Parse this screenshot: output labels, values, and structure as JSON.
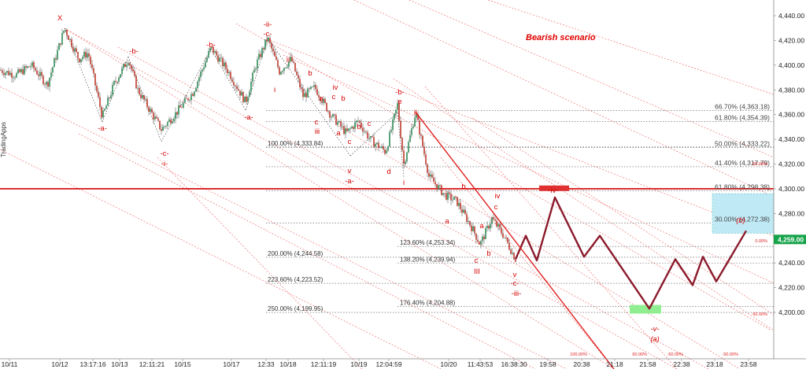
{
  "chart_data": {
    "type": "line",
    "title": "Bearish scenario",
    "watermark": "TradingApps",
    "y_axis": {
      "range": [
        4186,
        4450
      ],
      "ticks": [
        "4,440.00",
        "4,420.00",
        "4,400.00",
        "4,380.00",
        "4,360.00",
        "4,340.00",
        "4,320.00",
        "4,300.00",
        "4,280.00",
        "4,260.00",
        "4,240.00",
        "4,220.00",
        "4,200.00"
      ]
    },
    "x_axis": {
      "labels": [
        "10/11",
        "10/12",
        "13:17:16",
        "10/13",
        "12:11:21",
        "10/15",
        "10/17",
        "12:33",
        "10/18",
        "12:11:19",
        "10/19",
        "12:04:59",
        "10/20",
        "11:43:53",
        "16:38:30",
        "19:58",
        "20:38",
        "21:18",
        "21:58",
        "22:38",
        "23:18",
        "23:58"
      ]
    },
    "current_price": {
      "value": 4259.0,
      "label": "4,259.00",
      "color": "#16a34a"
    },
    "key_level": {
      "value": 4300.0,
      "color": "#d40000"
    },
    "fib_right": [
      {
        "label": "66.70% (4,363.18)",
        "value": 4363.18
      },
      {
        "label": "61.80% (4,354.39)",
        "value": 4354.39
      },
      {
        "label": "50.00% (4,333.22)",
        "value": 4333.22
      },
      {
        "label": "41.40% (4,317.79)",
        "value": 4317.79
      },
      {
        "label": "30.00% (4,272.38)",
        "value": 4272.38
      }
    ],
    "fib_right_overlap": {
      "label": "61.80% (4,298.38)",
      "value": 4298.38
    },
    "fib_left": [
      {
        "label": "100.00% (4,333.84)",
        "value": 4333.84
      },
      {
        "label": "200.00% (4,244.58)",
        "value": 4244.58
      },
      {
        "label": "223.60% (4,223.52)",
        "value": 4223.52
      },
      {
        "label": "250.00% (4,199.95)",
        "value": 4199.95
      }
    ],
    "fib_mid": [
      {
        "label": "123.60% (4,253.34)",
        "value": 4253.34
      },
      {
        "label": "138.20% (4,239.94)",
        "value": 4239.94
      },
      {
        "label": "176.40% (4,204.88)",
        "value": 4204.88
      }
    ],
    "small_pct_labels": [
      "-50.00%",
      "0.00%",
      "60.00%",
      "100.00%",
      "60.00%",
      "-50.00%",
      "-50.00%"
    ],
    "wave_labels": {
      "X": "X",
      "a1": "-a-",
      "b1": "-b-",
      "c1": "-c-",
      "i1": "-i-",
      "a2": "-a-",
      "b2": "-b-",
      "ii_top": "-ii-",
      "c_top": "-c-",
      "i_small": "i",
      "ii_small": "ii",
      "b_s1": "b",
      "a_s1": "a",
      "iv_s": "iv",
      "c_s1": "c",
      "b_s2": "b",
      "c_s2": "c",
      "iii_s": "iii",
      "a_s2": "a",
      "c_s3": "c",
      "v_s": "v",
      "a_big": "-a-",
      "b_s3": "b",
      "c_s4": "c",
      "d_s": "d",
      "e_s": "e",
      "b_big": "-b-",
      "ii_s2": "ii",
      "i_s2": "i",
      "b_s4": "b",
      "a_s3": "a",
      "iv_s2": "iv",
      "c_s5": "c",
      "a_s4": "a",
      "b_s5": "b",
      "c_s6": "c",
      "III": "III",
      "v_s2": "v",
      "c_big": "-c-",
      "iii_big": "-iii-",
      "iv_big": "-iv-",
      "v_big": "-v-",
      "a_paren": "(a)",
      "b_paren": "(b)"
    },
    "projection": {
      "color": "#8b1a2b"
    },
    "zones": {
      "resistance_color": "#e03030",
      "target_color": "#90ee90",
      "b_zone_color": "#bfe9f5"
    }
  }
}
